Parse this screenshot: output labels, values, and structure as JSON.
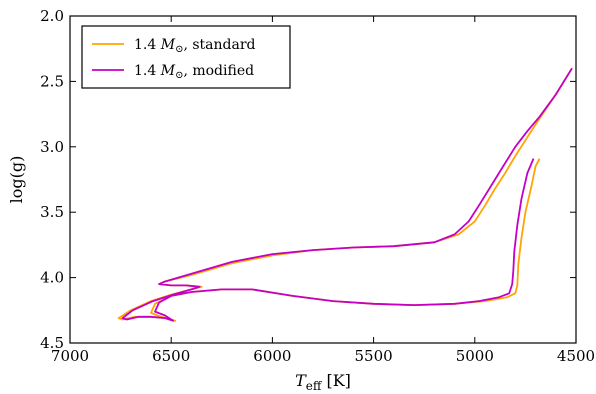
{
  "chart_data": {
    "type": "line",
    "xlabel": "T",
    "xlabel_sub": "eff",
    "xlabel_unit": " [K]",
    "ylabel": "log(g)",
    "xlim": [
      7000,
      4500
    ],
    "ylim": [
      2.0,
      4.5
    ],
    "x_inverted": true,
    "y_inverted": true,
    "xticks": [
      7000,
      6500,
      6000,
      5500,
      5000,
      4500
    ],
    "yticks": [
      2.0,
      2.5,
      3.0,
      3.5,
      4.0,
      4.5
    ],
    "xtick_labels": [
      "7000",
      "6500",
      "6000",
      "5500",
      "5000",
      "4500"
    ],
    "ytick_labels": [
      "2.0",
      "2.5",
      "3.0",
      "3.5",
      "4.0",
      "4.5"
    ],
    "legend_position": "top-left",
    "series": [
      {
        "name": "1.4 M☉, standard",
        "legend_prefix": "1.4 ",
        "legend_symbol": "M",
        "legend_sub": "⊙",
        "legend_suffix": ", standard",
        "color": "#FFA500",
        "points": [
          [
            4680,
            3.09
          ],
          [
            4700,
            3.15
          ],
          [
            4720,
            3.3
          ],
          [
            4750,
            3.5
          ],
          [
            4770,
            3.7
          ],
          [
            4785,
            3.9
          ],
          [
            4790,
            4.06
          ],
          [
            4800,
            4.12
          ],
          [
            4840,
            4.15
          ],
          [
            4950,
            4.18
          ],
          [
            5100,
            4.2
          ],
          [
            5300,
            4.21
          ],
          [
            5500,
            4.2
          ],
          [
            5700,
            4.18
          ],
          [
            5900,
            4.14
          ],
          [
            6100,
            4.09
          ],
          [
            6250,
            4.09
          ],
          [
            6400,
            4.11
          ],
          [
            6500,
            4.14
          ],
          [
            6580,
            4.2
          ],
          [
            6600,
            4.27
          ],
          [
            6550,
            4.3
          ],
          [
            6480,
            4.33
          ],
          [
            6520,
            4.31
          ],
          [
            6600,
            4.3
          ],
          [
            6680,
            4.3
          ],
          [
            6740,
            4.32
          ],
          [
            6760,
            4.31
          ],
          [
            6700,
            4.25
          ],
          [
            6600,
            4.18
          ],
          [
            6500,
            4.13
          ],
          [
            6400,
            4.09
          ],
          [
            6350,
            4.07
          ],
          [
            6420,
            4.06
          ],
          [
            6500,
            4.06
          ],
          [
            6560,
            4.05
          ],
          [
            6530,
            4.03
          ],
          [
            6400,
            3.98
          ],
          [
            6200,
            3.89
          ],
          [
            6000,
            3.83
          ],
          [
            5800,
            3.79
          ],
          [
            5600,
            3.77
          ],
          [
            5400,
            3.76
          ],
          [
            5200,
            3.73
          ],
          [
            5080,
            3.67
          ],
          [
            5000,
            3.57
          ],
          [
            4950,
            3.45
          ],
          [
            4900,
            3.32
          ],
          [
            4850,
            3.2
          ],
          [
            4800,
            3.07
          ],
          [
            4750,
            2.95
          ],
          [
            4700,
            2.83
          ],
          [
            4600,
            2.6
          ],
          [
            4520,
            2.4
          ]
        ]
      },
      {
        "name": "1.4 M☉, modified",
        "legend_prefix": "1.4 ",
        "legend_symbol": "M",
        "legend_sub": "⊙",
        "legend_suffix": ", modified",
        "color": "#C400C4",
        "points": [
          [
            4710,
            3.09
          ],
          [
            4740,
            3.2
          ],
          [
            4770,
            3.4
          ],
          [
            4790,
            3.6
          ],
          [
            4805,
            3.8
          ],
          [
            4810,
            3.95
          ],
          [
            4815,
            4.05
          ],
          [
            4830,
            4.12
          ],
          [
            4880,
            4.15
          ],
          [
            4980,
            4.18
          ],
          [
            5100,
            4.2
          ],
          [
            5300,
            4.21
          ],
          [
            5500,
            4.2
          ],
          [
            5700,
            4.18
          ],
          [
            5900,
            4.14
          ],
          [
            6100,
            4.09
          ],
          [
            6250,
            4.09
          ],
          [
            6400,
            4.11
          ],
          [
            6500,
            4.14
          ],
          [
            6560,
            4.19
          ],
          [
            6580,
            4.26
          ],
          [
            6530,
            4.29
          ],
          [
            6490,
            4.33
          ],
          [
            6530,
            4.31
          ],
          [
            6600,
            4.3
          ],
          [
            6660,
            4.3
          ],
          [
            6720,
            4.32
          ],
          [
            6740,
            4.31
          ],
          [
            6690,
            4.25
          ],
          [
            6590,
            4.18
          ],
          [
            6490,
            4.13
          ],
          [
            6400,
            4.09
          ],
          [
            6360,
            4.07
          ],
          [
            6430,
            4.06
          ],
          [
            6500,
            4.06
          ],
          [
            6560,
            4.05
          ],
          [
            6530,
            4.03
          ],
          [
            6400,
            3.97
          ],
          [
            6200,
            3.88
          ],
          [
            6000,
            3.82
          ],
          [
            5800,
            3.79
          ],
          [
            5600,
            3.77
          ],
          [
            5400,
            3.76
          ],
          [
            5200,
            3.73
          ],
          [
            5100,
            3.67
          ],
          [
            5030,
            3.57
          ],
          [
            4980,
            3.45
          ],
          [
            4920,
            3.3
          ],
          [
            4860,
            3.15
          ],
          [
            4800,
            3.0
          ],
          [
            4740,
            2.88
          ],
          [
            4680,
            2.77
          ],
          [
            4600,
            2.6
          ],
          [
            4520,
            2.4
          ]
        ]
      }
    ]
  }
}
